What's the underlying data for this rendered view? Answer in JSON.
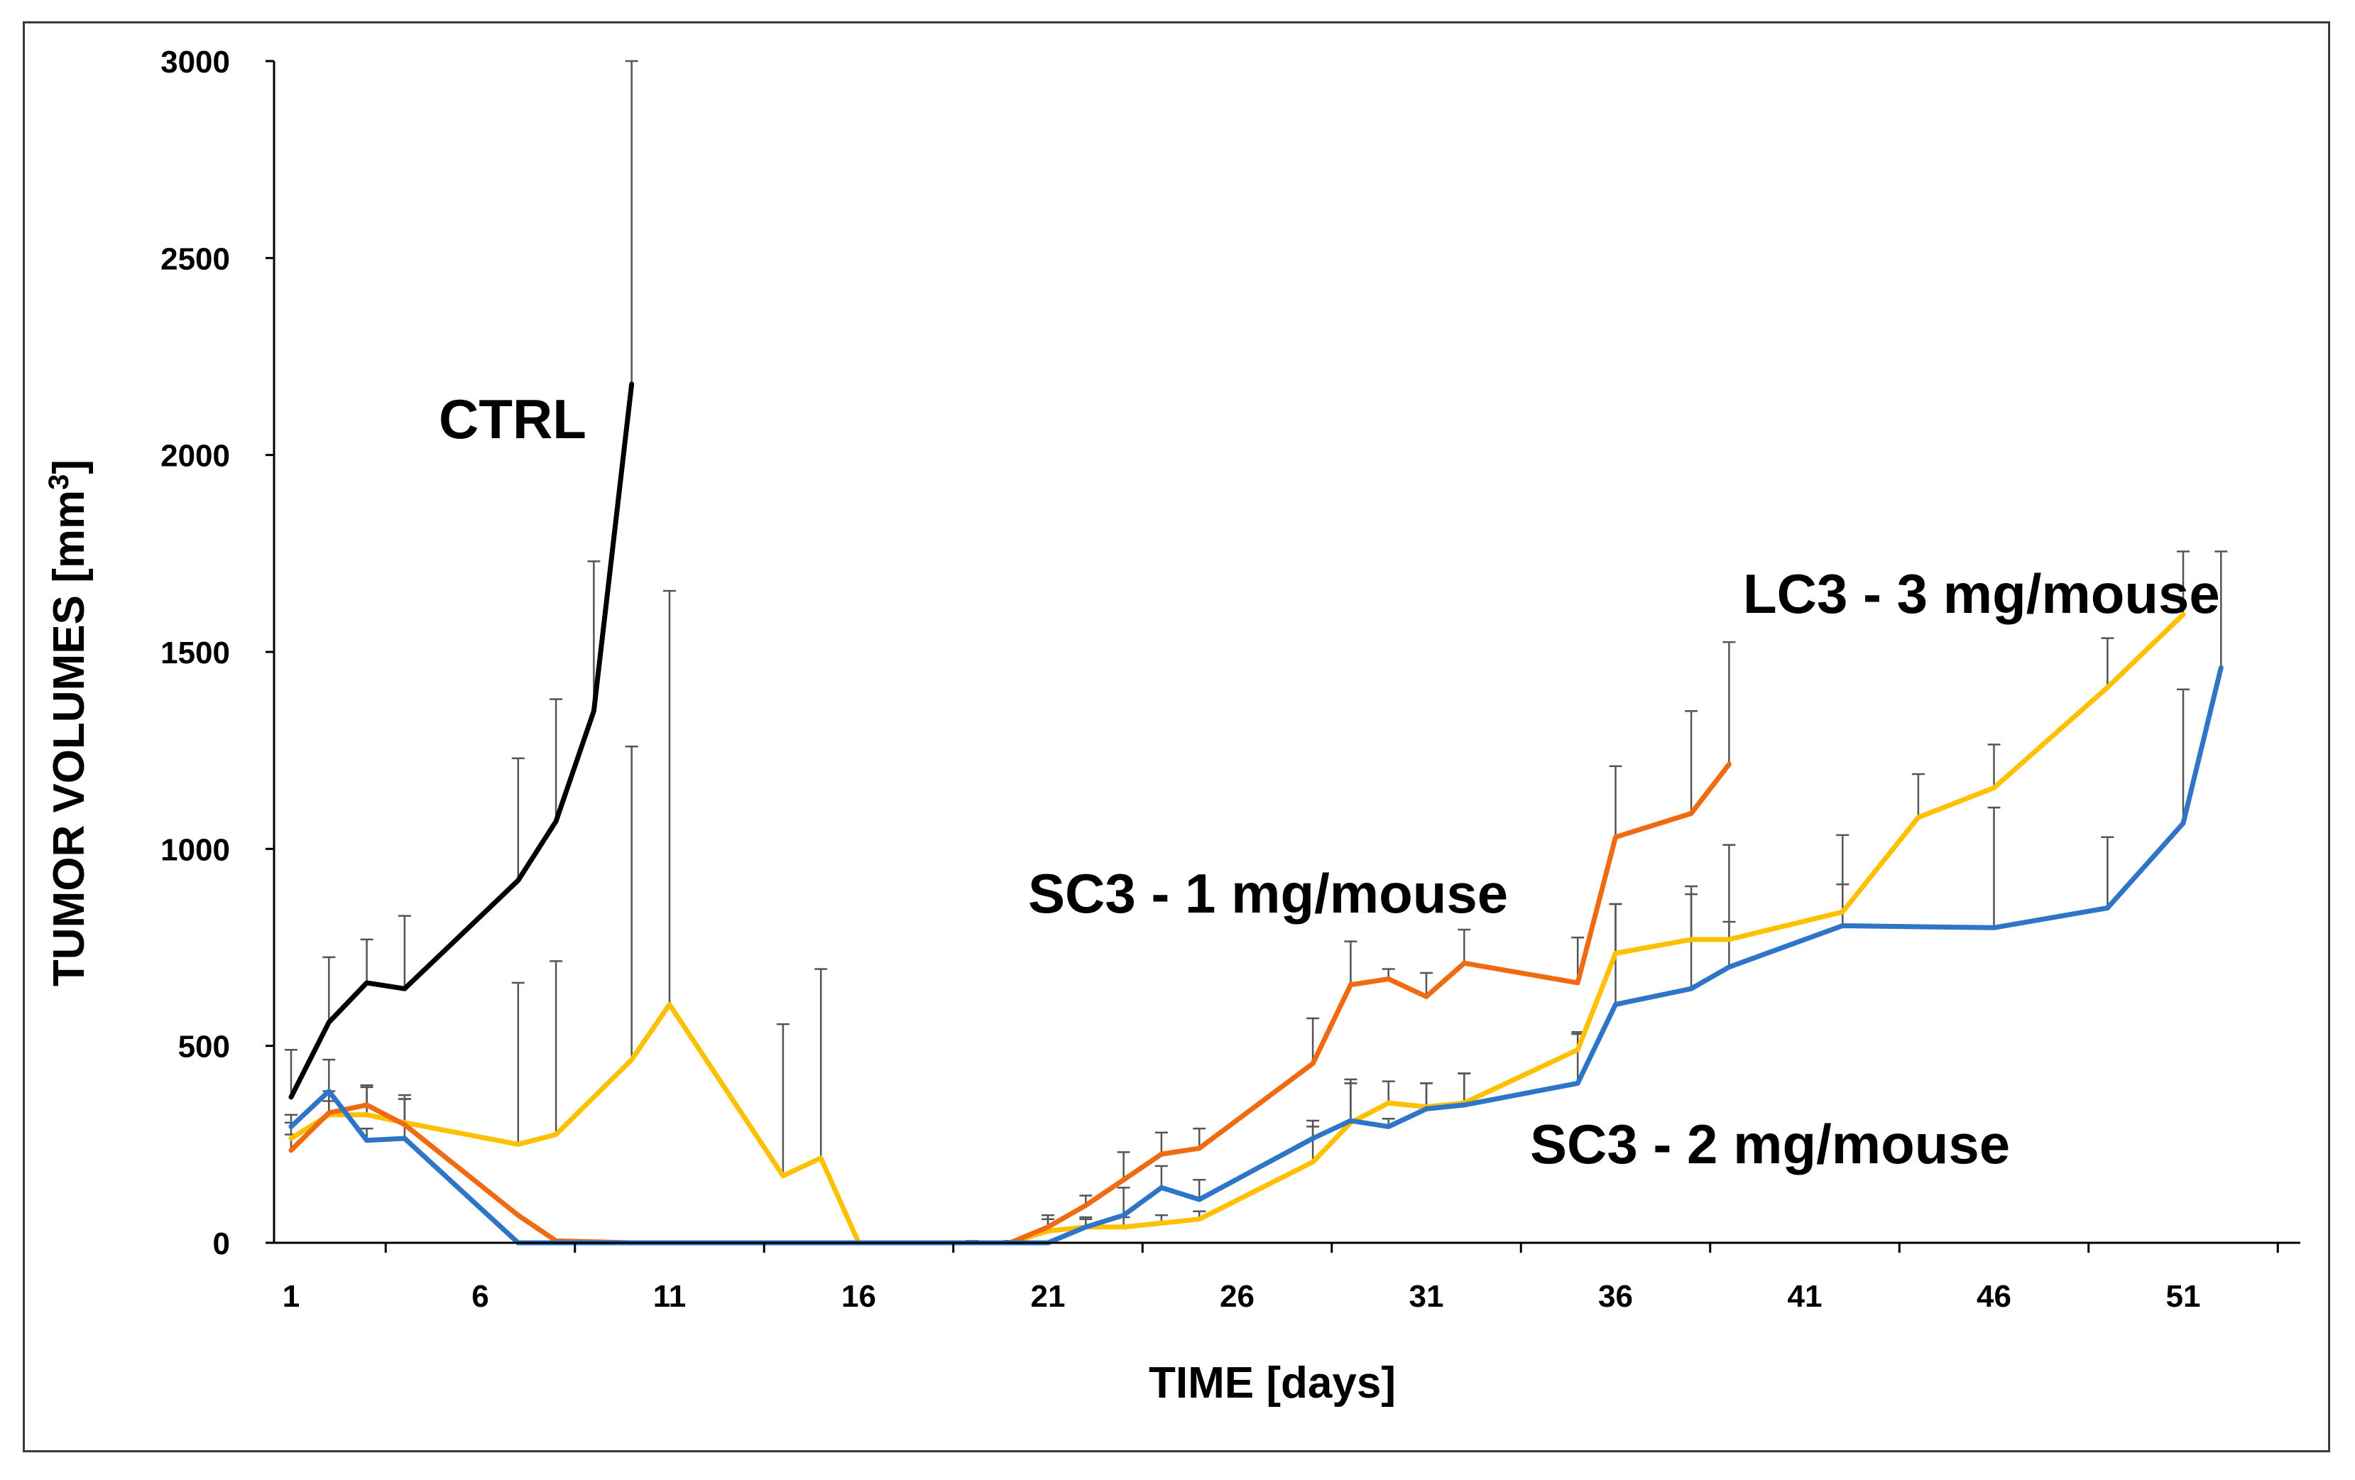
{
  "chart_data": {
    "type": "line",
    "title": "",
    "xlabel": "TIME [days]",
    "ylabel": "TUMOR VOLUMES [mm³]",
    "ylabel_main": "TUMOR VOLUMES [mm",
    "ylabel_sup": "3",
    "ylabel_end": "]",
    "xlim": [
      0.5,
      53.5
    ],
    "ylim": [
      0,
      3000
    ],
    "x_ticks": [
      1,
      6,
      11,
      16,
      21,
      26,
      31,
      36,
      41,
      46,
      51
    ],
    "y_ticks": [
      0,
      500,
      1000,
      1500,
      2000,
      2500,
      3000
    ],
    "grid": false,
    "legend": "direct-labels",
    "series": [
      {
        "name": "CTRL",
        "label": "CTRL",
        "color": "#000000",
        "x": [
          1,
          2,
          3,
          4,
          7,
          8,
          9,
          10
        ],
        "y": [
          370,
          560,
          660,
          645,
          920,
          1070,
          1350,
          2180
        ],
        "err": [
          120,
          165,
          110,
          185,
          310,
          310,
          380,
          820
        ]
      },
      {
        "name": "LC3 - 3 mg/mouse",
        "label": "LC3 - 3 mg/mouse",
        "color": "#FFC000",
        "x": [
          1,
          2,
          3,
          4,
          7,
          8,
          10,
          11,
          14,
          15,
          16,
          19,
          20,
          21,
          22,
          23,
          24,
          25,
          28,
          29,
          30,
          31,
          32,
          35,
          36,
          38,
          39,
          42,
          44,
          46,
          49,
          51
        ],
        "y": [
          265,
          325,
          325,
          305,
          250,
          275,
          465,
          605,
          170,
          215,
          0,
          0,
          0,
          30,
          40,
          40,
          50,
          60,
          205,
          305,
          355,
          345,
          355,
          490,
          735,
          770,
          770,
          840,
          1080,
          1155,
          1410,
          1595
        ],
        "err": [
          40,
          60,
          70,
          60,
          410,
          440,
          795,
          1050,
          385,
          480,
          0,
          5,
          5,
          30,
          25,
          25,
          20,
          20,
          105,
          110,
          55,
          60,
          75,
          40,
          125,
          135,
          45,
          70,
          110,
          110,
          125,
          160
        ]
      },
      {
        "name": "SC3 - 1 mg/mouse",
        "label": "SC3 - 1 mg/mouse",
        "color": "#F06A12",
        "x": [
          1,
          2,
          3,
          4,
          7,
          8,
          10,
          11,
          14,
          15,
          16,
          19,
          20,
          21,
          22,
          23,
          24,
          25,
          28,
          29,
          30,
          31,
          32,
          35,
          36,
          38,
          39
        ],
        "y": [
          235,
          330,
          350,
          300,
          70,
          5,
          0,
          0,
          0,
          0,
          0,
          0,
          0,
          40,
          95,
          160,
          225,
          240,
          455,
          655,
          670,
          625,
          710,
          660,
          1030,
          1090,
          1215
        ],
        "err": [
          40,
          30,
          50,
          65,
          0,
          0,
          0,
          0,
          0,
          0,
          0,
          0,
          0,
          30,
          25,
          70,
          55,
          50,
          115,
          110,
          25,
          60,
          85,
          115,
          180,
          260,
          310
        ]
      },
      {
        "name": "SC3 - 2 mg/mouse",
        "label": "SC3 - 2 mg/mouse",
        "color": "#2E75C8",
        "x": [
          1,
          2,
          3,
          4,
          7,
          8,
          10,
          11,
          14,
          15,
          16,
          19,
          20,
          21,
          22,
          23,
          24,
          25,
          28,
          29,
          30,
          31,
          32,
          35,
          36,
          38,
          39,
          42,
          46,
          49,
          51,
          52
        ],
        "y": [
          295,
          385,
          260,
          265,
          0,
          0,
          0,
          0,
          0,
          0,
          0,
          0,
          0,
          0,
          40,
          70,
          140,
          110,
          265,
          310,
          295,
          340,
          350,
          405,
          605,
          645,
          700,
          805,
          800,
          850,
          1065,
          1460
        ],
        "err": [
          30,
          80,
          30,
          110,
          0,
          0,
          0,
          0,
          0,
          0,
          0,
          0,
          0,
          0,
          20,
          70,
          55,
          50,
          30,
          95,
          20,
          65,
          80,
          130,
          255,
          240,
          310,
          230,
          305,
          180,
          340,
          295
        ]
      }
    ]
  }
}
